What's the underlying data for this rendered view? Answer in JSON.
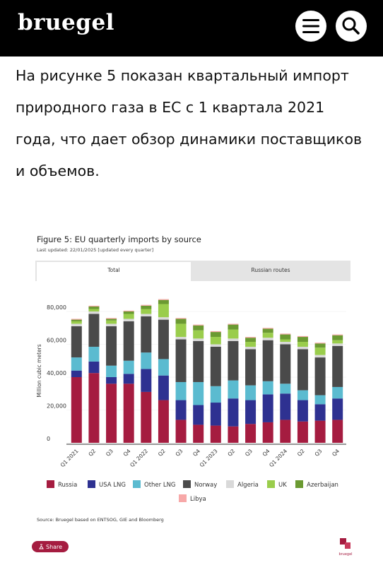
{
  "header": {
    "logo": "bruegel"
  },
  "article": {
    "paragraph": "На рисунке 5 показан квартальный импорт природного газа в ЕС с 1 квартала 2021 года, что дает обзор динамики поставщиков и объемов."
  },
  "figure": {
    "title": "Figure 5: EU quarterly imports by source",
    "updated": "Last updated: 22/01/2025 [updated every quarter]",
    "tabs": [
      "Total",
      "Russian routes"
    ],
    "source": "Source: Bruegel based on ENTSOG, GIE and Bloomberg",
    "share": "Share",
    "logo": "bruegel"
  },
  "chart_data": {
    "type": "stacked_bar",
    "y_label": "Million cubic meters",
    "categories": [
      "Q1 2021",
      "Q2",
      "Q3",
      "Q4",
      "Q1 2022",
      "Q2",
      "Q3",
      "Q4",
      "Q1 2023",
      "Q2",
      "Q3",
      "Q4",
      "Q1 2024",
      "Q2",
      "Q3",
      "Q4"
    ],
    "ylim": [
      0,
      90000
    ],
    "yticks": [
      0,
      {
        "value": 20000,
        "label": "20,000"
      },
      {
        "value": 40000,
        "label": "40,000"
      },
      {
        "value": 60000,
        "label": "60,000"
      },
      {
        "value": 80000,
        "label": "80,000"
      }
    ],
    "series": [
      {
        "name": "Russia",
        "color": "#a51c40",
        "values": [
          40000,
          42500,
          36000,
          36000,
          31000,
          26000,
          14000,
          11000,
          10500,
          10000,
          11500,
          12500,
          14000,
          13000,
          13500,
          14000
        ]
      },
      {
        "name": "USA LNG",
        "color": "#2e3191",
        "values": [
          4000,
          7000,
          4000,
          6000,
          14000,
          15000,
          12000,
          12000,
          14000,
          17000,
          14500,
          17000,
          16000,
          13000,
          10000,
          13000
        ]
      },
      {
        "name": "Other LNG",
        "color": "#5bbbd0",
        "values": [
          8000,
          9000,
          7000,
          8000,
          10000,
          10000,
          11000,
          14000,
          10000,
          11000,
          9000,
          8000,
          6000,
          6000,
          5500,
          7000
        ]
      },
      {
        "name": "Norway",
        "color": "#4a4a4a",
        "values": [
          19000,
          20000,
          24000,
          24000,
          22000,
          24000,
          26000,
          25000,
          24000,
          24000,
          22000,
          25000,
          24000,
          25000,
          23000,
          25000
        ]
      },
      {
        "name": "Algeria",
        "color": "#d9d9d9",
        "values": [
          1500,
          1500,
          1500,
          1500,
          1500,
          1500,
          1500,
          1500,
          1500,
          1500,
          1500,
          1500,
          1500,
          1500,
          1500,
          1500
        ]
      },
      {
        "name": "UK",
        "color": "#9acd4c",
        "values": [
          1500,
          1500,
          2000,
          3000,
          3000,
          8000,
          8000,
          5000,
          4500,
          5500,
          3000,
          3000,
          1500,
          3000,
          4500,
          2000
        ]
      },
      {
        "name": "Azerbaijan",
        "color": "#6b9a32",
        "values": [
          1000,
          1500,
          1000,
          1500,
          2000,
          2500,
          3000,
          3000,
          3000,
          3000,
          2500,
          2500,
          3000,
          3000,
          2500,
          3000
        ]
      },
      {
        "name": "Libya",
        "color": "#f7a8a8",
        "values": [
          500,
          500,
          500,
          500,
          500,
          500,
          500,
          500,
          500,
          500,
          500,
          500,
          500,
          500,
          500,
          500
        ]
      }
    ]
  }
}
